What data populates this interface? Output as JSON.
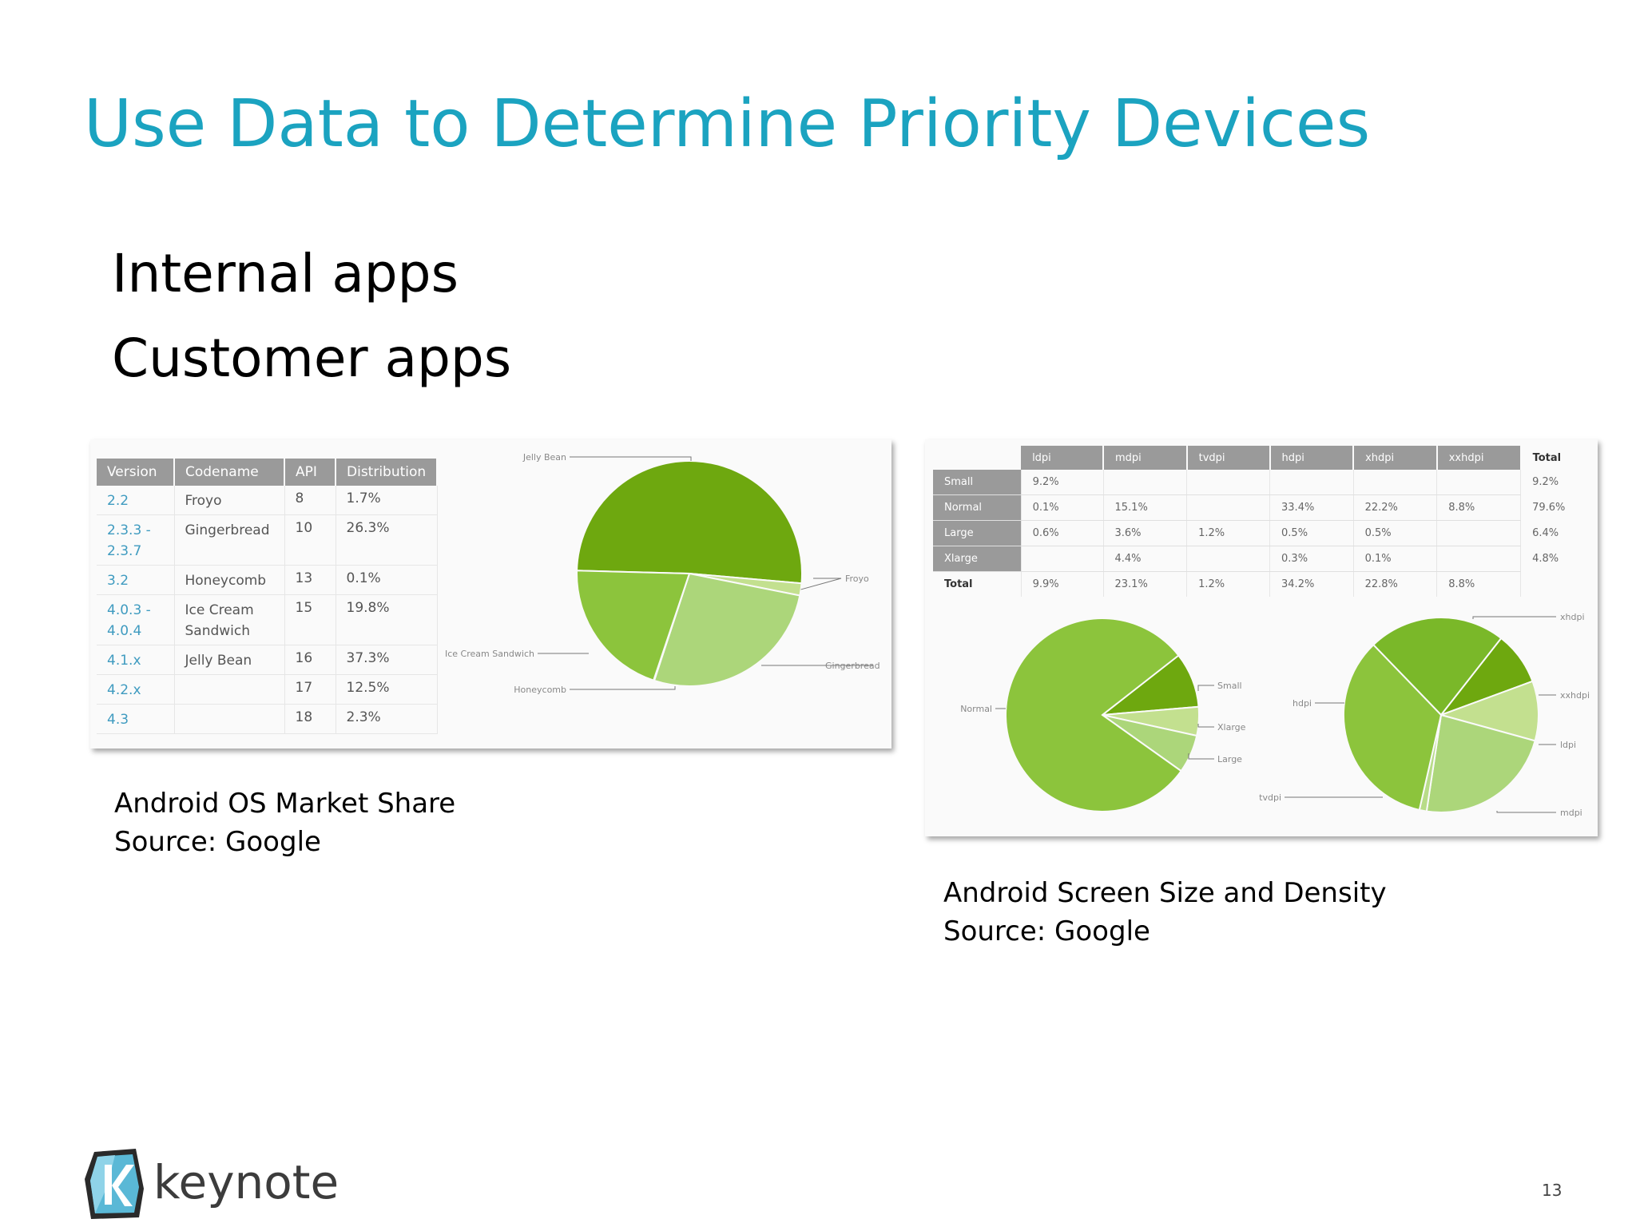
{
  "slide": {
    "title": "Use Data to Determine Priority Devices",
    "bullets": [
      "Internal apps",
      "Customer apps"
    ],
    "page_number": "13",
    "logo_text": "keynote"
  },
  "captions": {
    "os": [
      "Android OS Market Share",
      "Source: Google"
    ],
    "screen": [
      "Android Screen Size and Density",
      "Source: Google"
    ]
  },
  "os_table": {
    "headers": [
      "Version",
      "Codename",
      "API",
      "Distribution"
    ],
    "rows": [
      {
        "version": [
          "2.2"
        ],
        "codename": [
          "Froyo"
        ],
        "api": "8",
        "distribution": "1.7%"
      },
      {
        "version": [
          "2.3.3 -",
          "2.3.7"
        ],
        "codename": [
          "Gingerbread"
        ],
        "api": "10",
        "distribution": "26.3%"
      },
      {
        "version": [
          "3.2"
        ],
        "codename": [
          "Honeycomb"
        ],
        "api": "13",
        "distribution": "0.1%"
      },
      {
        "version": [
          "4.0.3 -",
          "4.0.4"
        ],
        "codename": [
          "Ice Cream",
          "Sandwich"
        ],
        "api": "15",
        "distribution": "19.8%"
      },
      {
        "version": [
          "4.1.x"
        ],
        "codename": [
          "Jelly Bean"
        ],
        "api": "16",
        "distribution": "37.3%"
      },
      {
        "version": [
          "4.2.x"
        ],
        "codename": [
          ""
        ],
        "api": "17",
        "distribution": "12.5%"
      },
      {
        "version": [
          "4.3"
        ],
        "codename": [
          ""
        ],
        "api": "18",
        "distribution": "2.3%"
      }
    ]
  },
  "screen_table": {
    "headers": [
      "ldpi",
      "mdpi",
      "tvdpi",
      "hdpi",
      "xhdpi",
      "xxhdpi"
    ],
    "total_header": "Total",
    "rows": [
      {
        "label": "Small",
        "cells": [
          "9.2%",
          "",
          "",
          "",
          "",
          ""
        ],
        "total": "9.2%"
      },
      {
        "label": "Normal",
        "cells": [
          "0.1%",
          "15.1%",
          "",
          "33.4%",
          "22.2%",
          "8.8%"
        ],
        "total": "79.6%"
      },
      {
        "label": "Large",
        "cells": [
          "0.6%",
          "3.6%",
          "1.2%",
          "0.5%",
          "0.5%",
          ""
        ],
        "total": "6.4%"
      },
      {
        "label": "Xlarge",
        "cells": [
          "",
          "4.4%",
          "",
          "0.3%",
          "0.1%",
          ""
        ],
        "total": "4.8%"
      },
      {
        "label": "Total",
        "cells": [
          "9.9%",
          "23.1%",
          "1.2%",
          "34.2%",
          "22.8%",
          "8.8%"
        ],
        "total": ""
      }
    ]
  },
  "chart_data": [
    {
      "type": "pie",
      "labels": [
        "Jelly Bean",
        "Froyo",
        "Gingerbread",
        "Honeycomb",
        "Ice Cream Sandwich"
      ],
      "values": [
        49.8,
        1.7,
        26.3,
        0.1,
        19.8
      ],
      "colors": [
        "#6ea80f",
        "#c3e08f",
        "#acd67a",
        "#7ab829",
        "#8cc43c"
      ]
    },
    {
      "type": "pie",
      "labels": [
        "Small",
        "Xlarge",
        "Large",
        "Normal"
      ],
      "values": [
        9.2,
        4.8,
        6.4,
        79.6
      ],
      "colors": [
        "#6ea80f",
        "#c3e08f",
        "#acd67a",
        "#8cc43c"
      ]
    },
    {
      "type": "pie",
      "labels": [
        "xhdpi",
        "xxhdpi",
        "ldpi",
        "mdpi",
        "tvdpi",
        "hdpi"
      ],
      "values": [
        22.8,
        8.8,
        9.9,
        23.1,
        1.2,
        34.2
      ],
      "colors": [
        "#7ab829",
        "#6ea80f",
        "#c3e08f",
        "#acd67a",
        "#b8dc88",
        "#8cc43c"
      ]
    }
  ]
}
